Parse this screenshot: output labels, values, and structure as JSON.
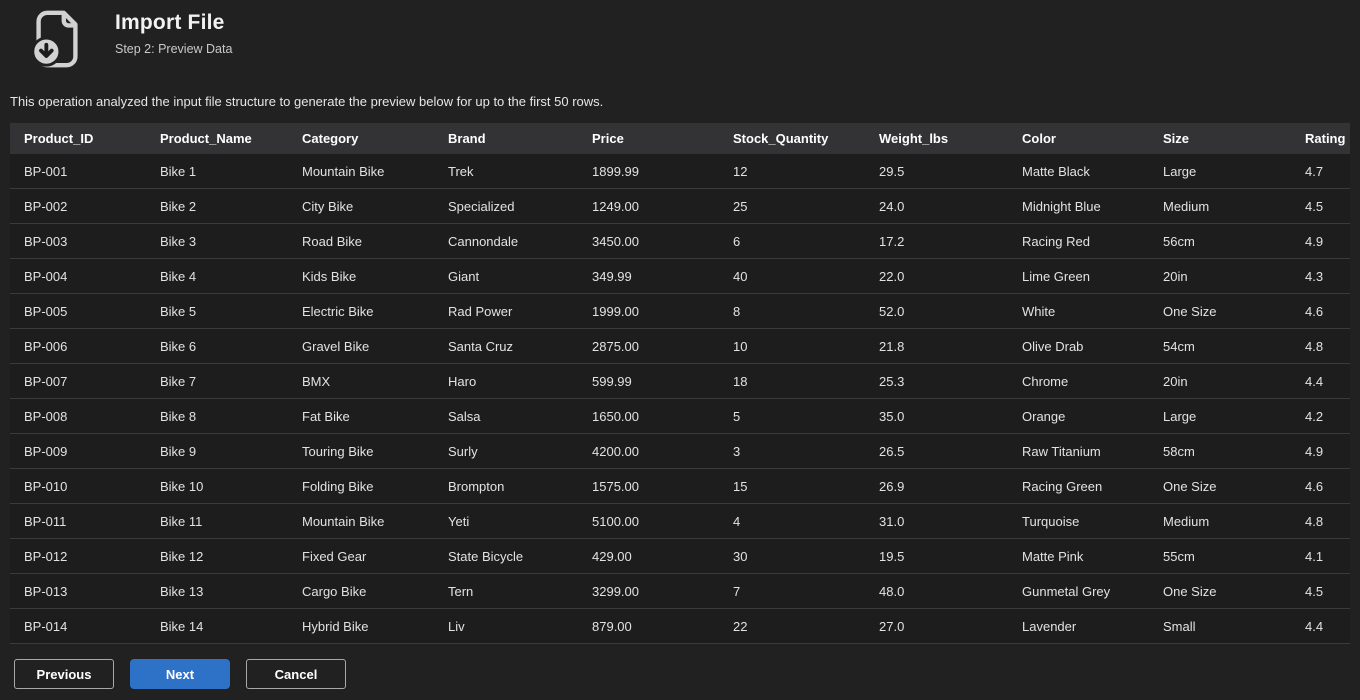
{
  "header": {
    "title": "Import File",
    "subtitle": "Step 2: Preview Data",
    "icon": "file-download-icon"
  },
  "description": "This operation analyzed the input file structure to generate the preview below for up to the first 50 rows.",
  "table": {
    "columns": [
      "Product_ID",
      "Product_Name",
      "Category",
      "Brand",
      "Price",
      "Stock_Quantity",
      "Weight_lbs",
      "Color",
      "Size",
      "Rating"
    ],
    "rows": [
      [
        "BP-001",
        "Bike 1",
        "Mountain Bike",
        "Trek",
        "1899.99",
        "12",
        "29.5",
        "Matte Black",
        "Large",
        "4.7"
      ],
      [
        "BP-002",
        "Bike 2",
        "City Bike",
        "Specialized",
        "1249.00",
        "25",
        "24.0",
        "Midnight Blue",
        "Medium",
        "4.5"
      ],
      [
        "BP-003",
        "Bike 3",
        "Road Bike",
        "Cannondale",
        "3450.00",
        "6",
        "17.2",
        "Racing Red",
        "56cm",
        "4.9"
      ],
      [
        "BP-004",
        "Bike 4",
        "Kids Bike",
        "Giant",
        "349.99",
        "40",
        "22.0",
        "Lime Green",
        "20in",
        "4.3"
      ],
      [
        "BP-005",
        "Bike 5",
        "Electric Bike",
        "Rad Power",
        "1999.00",
        "8",
        "52.0",
        "White",
        "One Size",
        "4.6"
      ],
      [
        "BP-006",
        "Bike 6",
        "Gravel Bike",
        "Santa Cruz",
        "2875.00",
        "10",
        "21.8",
        "Olive Drab",
        "54cm",
        "4.8"
      ],
      [
        "BP-007",
        "Bike 7",
        "BMX",
        "Haro",
        "599.99",
        "18",
        "25.3",
        "Chrome",
        "20in",
        "4.4"
      ],
      [
        "BP-008",
        "Bike 8",
        "Fat Bike",
        "Salsa",
        "1650.00",
        "5",
        "35.0",
        "Orange",
        "Large",
        "4.2"
      ],
      [
        "BP-009",
        "Bike 9",
        "Touring Bike",
        "Surly",
        "4200.00",
        "3",
        "26.5",
        "Raw Titanium",
        "58cm",
        "4.9"
      ],
      [
        "BP-010",
        "Bike 10",
        "Folding Bike",
        "Brompton",
        "1575.00",
        "15",
        "26.9",
        "Racing Green",
        "One Size",
        "4.6"
      ],
      [
        "BP-011",
        "Bike 11",
        "Mountain Bike",
        "Yeti",
        "5100.00",
        "4",
        "31.0",
        "Turquoise",
        "Medium",
        "4.8"
      ],
      [
        "BP-012",
        "Bike 12",
        "Fixed Gear",
        "State Bicycle",
        "429.00",
        "30",
        "19.5",
        "Matte Pink",
        "55cm",
        "4.1"
      ],
      [
        "BP-013",
        "Bike 13",
        "Cargo Bike",
        "Tern",
        "3299.00",
        "7",
        "48.0",
        "Gunmetal Grey",
        "One Size",
        "4.5"
      ],
      [
        "BP-014",
        "Bike 14",
        "Hybrid Bike",
        "Liv",
        "879.00",
        "22",
        "27.0",
        "Lavender",
        "Small",
        "4.4"
      ]
    ]
  },
  "footer": {
    "previous_label": "Previous",
    "next_label": "Next",
    "cancel_label": "Cancel"
  },
  "colors": {
    "accent_blue": "#2e72c8",
    "page_background": "#212121",
    "table_header_background": "#333336",
    "row_background": "#1d1d1d",
    "row_separator": "#3a3a3a"
  }
}
